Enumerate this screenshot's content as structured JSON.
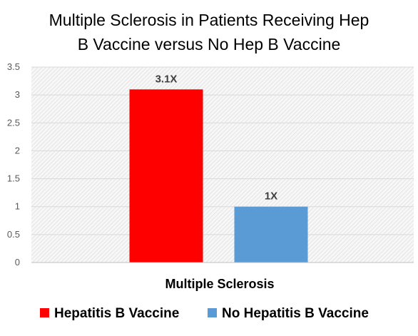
{
  "chart_data": {
    "type": "bar",
    "title": "Multiple Sclerosis in Patients Receiving Hep B Vaccine versus No Hep B Vaccine",
    "title_lines": [
      "Multiple Sclerosis in Patients Receiving Hep",
      "B Vaccine versus No Hep B Vaccine"
    ],
    "categories": [
      "Multiple Sclerosis"
    ],
    "series": [
      {
        "name": "Hepatitis B Vaccine",
        "values": [
          3.1
        ],
        "data_label": "3.1X",
        "color": "#ff0000"
      },
      {
        "name": "No Hepatitis B Vaccine",
        "values": [
          1
        ],
        "data_label": "1X",
        "color": "#5b9bd5"
      }
    ],
    "xlabel": "",
    "ylabel": "",
    "ylim": [
      0,
      3.5
    ],
    "yticks": [
      0,
      0.5,
      1,
      1.5,
      2,
      2.5,
      3,
      3.5
    ],
    "ytick_labels": [
      "0",
      "0.5",
      "1",
      "1.5",
      "2",
      "2.5",
      "3",
      "3.5"
    ],
    "grid": true,
    "plot_background": "hatched-light-gray",
    "legend_position": "bottom"
  }
}
